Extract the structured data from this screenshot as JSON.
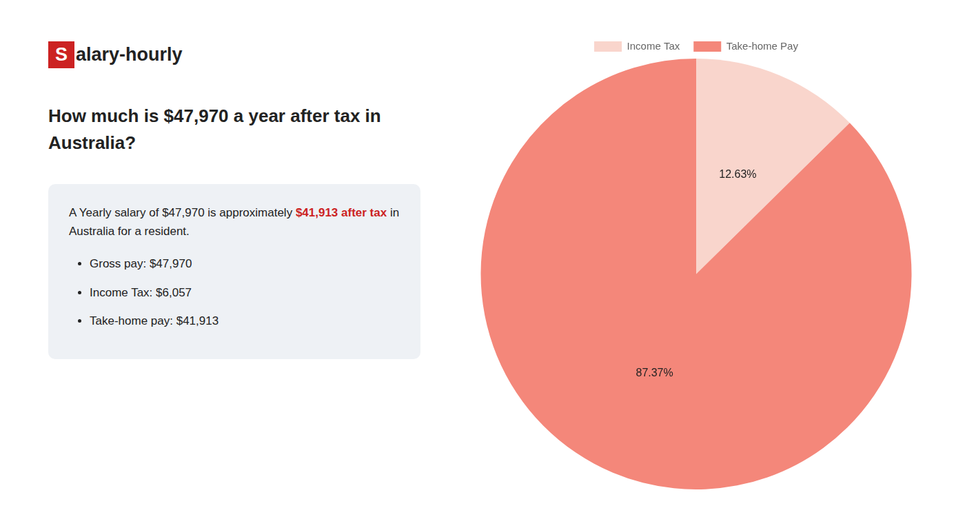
{
  "chart_data": {
    "type": "pie",
    "title": [
      "How much is $47,970 a year after tax in",
      "Australia?"
    ],
    "categories": [
      "Income Tax",
      "Take-home Pay"
    ],
    "values": [
      12.63,
      87.37
    ],
    "value_labels": [
      "12.63%",
      "87.37%"
    ],
    "colors": [
      "#f9d5cc",
      "#f4877a"
    ],
    "data_labels": true,
    "legend": "top",
    "annotations": {
      "logo": [
        {
          "text": "S",
          "color": "#cc2222"
        },
        {
          "text": "alary-hourly"
        }
      ],
      "text": [
        [
          {
            "text": "A Yearly salary of $47,970 is approximately "
          },
          {
            "text": "$41,913 after tax",
            "color": "#cc2222"
          },
          {
            "text": " in"
          }
        ],
        [
          {
            "text": "Australia for a resident."
          }
        ]
      ],
      "bullets": [
        "Gross pay: $47,970",
        "Income Tax: $6,057",
        "Take-home pay: $41,913"
      ]
    }
  }
}
